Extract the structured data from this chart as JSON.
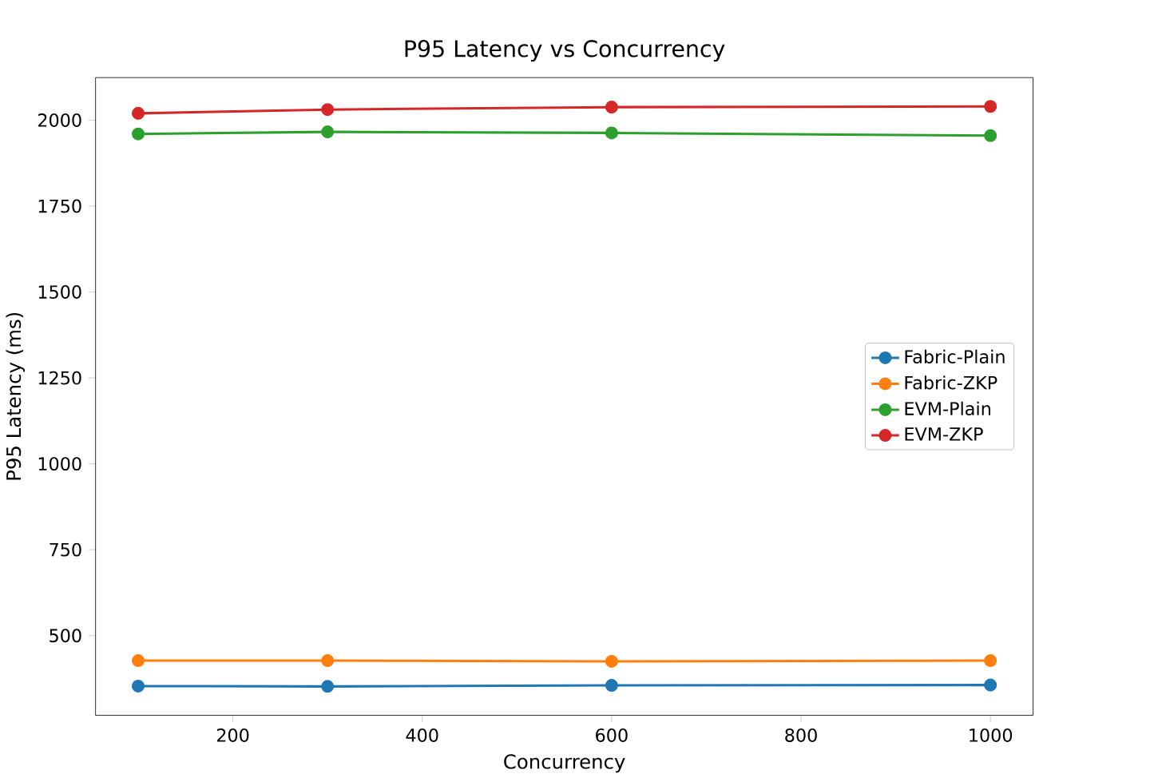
{
  "chart_data": {
    "type": "line",
    "title": "P95 Latency vs Concurrency",
    "xlabel": "Concurrency",
    "ylabel": "P95 Latency (ms)",
    "x": [
      100,
      300,
      600,
      1000
    ],
    "series": [
      {
        "name": "Fabric-Plain",
        "color": "#1f77b4",
        "values": [
          353,
          352,
          355,
          356
        ]
      },
      {
        "name": "Fabric-ZKP",
        "color": "#ff7f0e",
        "values": [
          427,
          427,
          425,
          427
        ]
      },
      {
        "name": "EVM-Plain",
        "color": "#2ca02c",
        "values": [
          1960,
          1966,
          1963,
          1955
        ]
      },
      {
        "name": "EVM-ZKP",
        "color": "#d62728",
        "values": [
          2020,
          2031,
          2038,
          2040
        ]
      }
    ],
    "xlim": [
      55,
      1045
    ],
    "ylim": [
      268,
      2124
    ],
    "xticks": [
      200,
      400,
      600,
      800,
      1000
    ],
    "yticks": [
      500,
      750,
      1000,
      1250,
      1500,
      1750,
      2000
    ],
    "marker": "circle",
    "line_style": "solid",
    "legend": "right",
    "grid": false
  }
}
